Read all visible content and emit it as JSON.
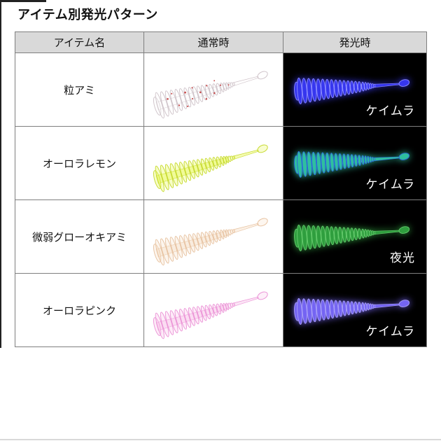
{
  "page": {
    "title": "アイテム別発光パターン"
  },
  "table": {
    "border_color": "#7f7f7f",
    "header_bg": "#d9d9d9",
    "glow_bg": "#000000",
    "headers": [
      {
        "label": "アイテム名"
      },
      {
        "label": "通常時"
      },
      {
        "label": "発光時"
      }
    ],
    "rows": [
      {
        "name": "粒アミ",
        "glow_label": "ケイムラ",
        "lure": {
          "normal_fill": "#fdfbfc",
          "normal_edge": "#cfc3c9",
          "speck": "#c03030",
          "glow_core": "#3636ee",
          "glow_hi": "#8c8cff"
        }
      },
      {
        "name": "オーロラレモン",
        "glow_label": "ケイムラ",
        "lure": {
          "normal_fill": "#e9f85f",
          "normal_edge": "#c6d92e",
          "glow_core": "#2fbf9f",
          "glow_hi": "#7de8cd",
          "glow_edge": "#2a64d8"
        }
      },
      {
        "name": "微弱グローオキアミ",
        "glow_label": "夜光",
        "lure": {
          "normal_fill": "#f7e1cb",
          "normal_edge": "#e7c2a0",
          "glow_core": "#2f9e3e",
          "glow_hi": "#63c96b"
        }
      },
      {
        "name": "オーロラピンク",
        "glow_label": "ケイムラ",
        "lure": {
          "normal_fill": "#f8c9ec",
          "normal_edge": "#eb93d6",
          "glow_core": "#7464f2",
          "glow_hi": "#a89ff8"
        }
      }
    ]
  }
}
